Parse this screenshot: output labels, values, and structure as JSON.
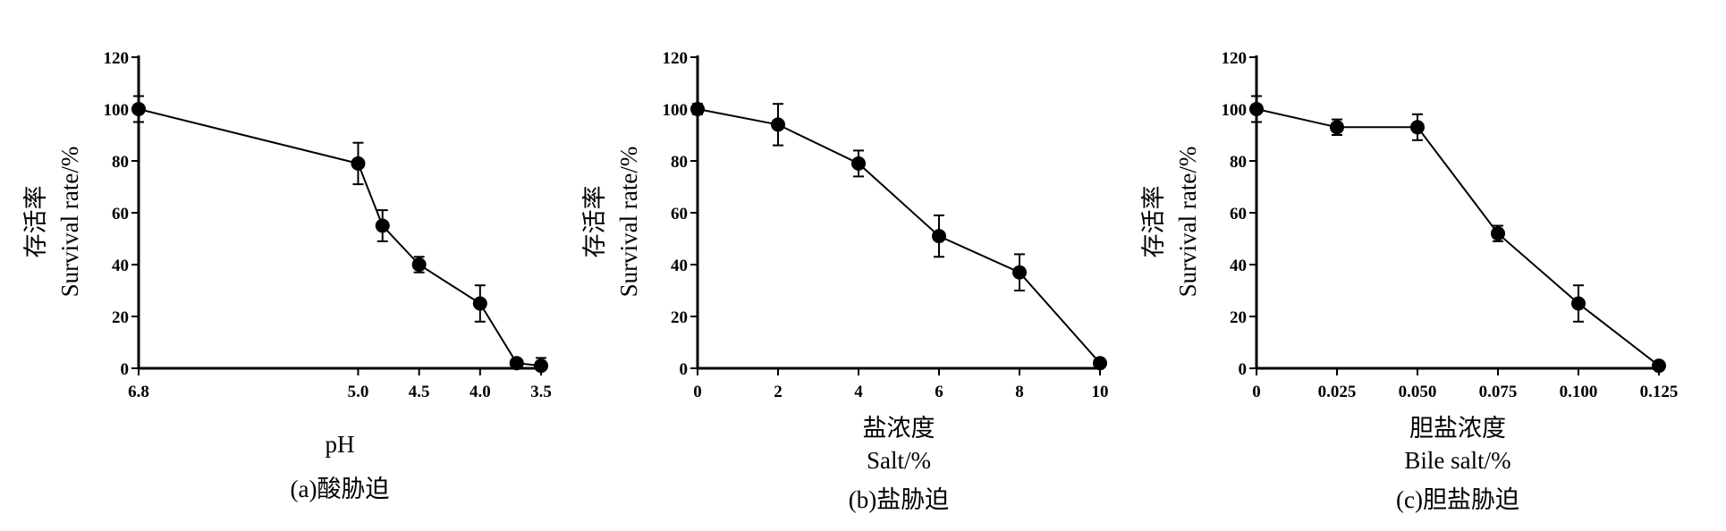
{
  "chart_data": [
    {
      "type": "line",
      "ylabel": "存活率 Survival rate/%",
      "ylabel_cn": "存活率",
      "ylabel_en": "Survival rate/%",
      "xlabel": "pH",
      "xlabel_lines": [
        "pH"
      ],
      "caption": "(a)酸胁迫",
      "ylim": [
        0,
        120
      ],
      "yticks": [
        0,
        20,
        40,
        60,
        80,
        100,
        120
      ],
      "xticks": [
        "6.8",
        "5.0",
        "4.5",
        "4.0",
        "3.5"
      ],
      "xaxis": "pH (decreasing)",
      "series": [
        {
          "x": [
            6.8,
            5.0,
            4.8,
            4.5,
            4.0,
            3.7,
            3.5
          ],
          "y": [
            100,
            79,
            55,
            40,
            25,
            2,
            1
          ],
          "err": [
            5,
            8,
            6,
            3,
            7,
            1,
            3
          ]
        }
      ]
    },
    {
      "type": "line",
      "ylabel": "存活率 Survival rate/%",
      "ylabel_cn": "存活率",
      "ylabel_en": "Survival rate/%",
      "xlabel": "盐浓度 Salt/%",
      "xlabel_lines": [
        "盐浓度",
        "Salt/%"
      ],
      "caption": "(b)盐胁迫",
      "ylim": [
        0,
        120
      ],
      "yticks": [
        0,
        20,
        40,
        60,
        80,
        100,
        120
      ],
      "xticks": [
        "0",
        "2",
        "4",
        "6",
        "8",
        "10"
      ],
      "series": [
        {
          "x": [
            0,
            2,
            4,
            6,
            8,
            10
          ],
          "y": [
            100,
            94,
            79,
            51,
            37,
            2
          ],
          "err": [
            2,
            8,
            5,
            8,
            7,
            1
          ]
        }
      ]
    },
    {
      "type": "line",
      "ylabel": "存活率 Survival rate/%",
      "ylabel_cn": "存活率",
      "ylabel_en": "Survival rate/%",
      "xlabel": "胆盐浓度 Bile salt/%",
      "xlabel_lines": [
        "胆盐浓度",
        "Bile salt/%"
      ],
      "caption": "(c)胆盐胁迫",
      "ylim": [
        0,
        120
      ],
      "yticks": [
        0,
        20,
        40,
        60,
        80,
        100,
        120
      ],
      "xticks": [
        "0",
        "0.025",
        "0.050",
        "0.075",
        "0.100",
        "0.125"
      ],
      "series": [
        {
          "x": [
            0,
            0.025,
            0.05,
            0.075,
            0.1,
            0.125
          ],
          "y": [
            100,
            93,
            93,
            52,
            25,
            1
          ],
          "err": [
            5,
            3,
            5,
            3,
            7,
            1
          ]
        }
      ]
    }
  ]
}
